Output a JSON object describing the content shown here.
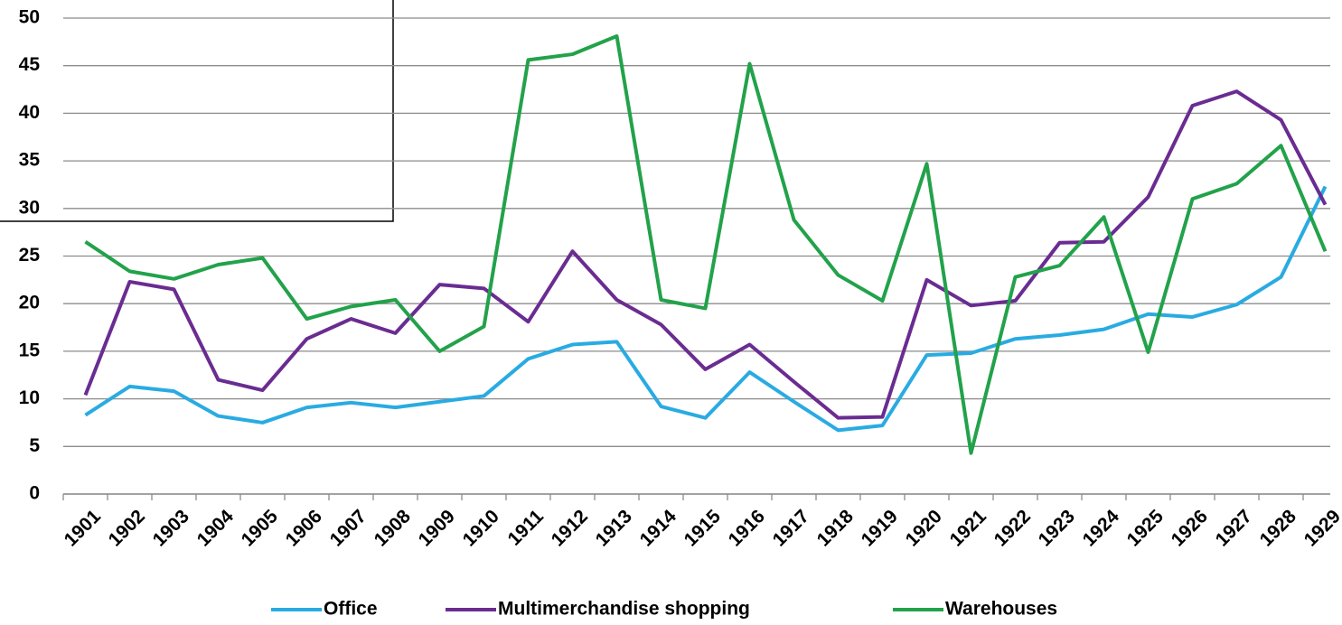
{
  "chart_data": {
    "type": "line",
    "categories": [
      "1901",
      "1902",
      "1903",
      "1904",
      "1905",
      "1906",
      "1907",
      "1908",
      "1909",
      "1910",
      "1911",
      "1912",
      "1913",
      "1914",
      "1915",
      "1916",
      "1917",
      "1918",
      "1919",
      "1920",
      "1921",
      "1922",
      "1923",
      "1924",
      "1925",
      "1926",
      "1927",
      "1928",
      "1929"
    ],
    "series": [
      {
        "name": "Office",
        "color": "#29abe2",
        "values": [
          8.3,
          11.3,
          10.8,
          8.2,
          7.5,
          9.1,
          9.6,
          9.1,
          9.7,
          10.3,
          14.2,
          15.7,
          16.0,
          9.2,
          8.0,
          12.8,
          9.7,
          6.7,
          7.2,
          14.6,
          14.8,
          16.3,
          16.7,
          17.3,
          18.9,
          18.6,
          19.9,
          22.8,
          32.3
        ]
      },
      {
        "name": "Multimerchandise shopping",
        "color": "#6a2c91",
        "values": [
          10.4,
          22.3,
          21.5,
          12.0,
          10.9,
          16.3,
          18.4,
          16.9,
          22.0,
          21.6,
          18.1,
          25.5,
          20.4,
          17.8,
          13.1,
          15.7,
          11.8,
          8.0,
          8.1,
          22.5,
          19.8,
          20.3,
          26.4,
          26.5,
          31.2,
          40.8,
          42.3,
          39.3,
          30.4
        ]
      },
      {
        "name": "Warehouses",
        "color": "#22a24a",
        "values": [
          26.5,
          23.4,
          22.6,
          24.1,
          24.8,
          18.4,
          19.7,
          20.4,
          15.0,
          17.6,
          45.6,
          46.2,
          48.1,
          20.4,
          19.5,
          45.2,
          28.8,
          23.0,
          20.3,
          34.7,
          4.3,
          22.8,
          24.0,
          29.1,
          14.9,
          31.0,
          32.6,
          36.6,
          25.5
        ]
      }
    ],
    "ylim": [
      0,
      50
    ],
    "yticks": [
      0,
      5,
      10,
      15,
      20,
      25,
      30,
      35,
      40,
      45,
      50
    ],
    "grid": true,
    "legend": "bottom"
  }
}
